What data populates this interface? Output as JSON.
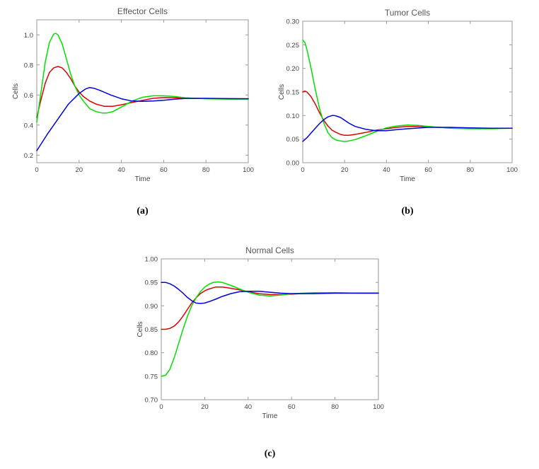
{
  "chart_data": [
    {
      "type": "line",
      "panel_label": "(a)",
      "title": "Effector  Cells",
      "xlabel": "Time",
      "ylabel": "Cells",
      "xlim": [
        0,
        100
      ],
      "ylim": [
        0.15,
        1.1
      ],
      "xticks": [
        0,
        20,
        40,
        60,
        80,
        100
      ],
      "xtick_labels": [
        "0",
        "20",
        "40",
        "60",
        "80",
        "100"
      ],
      "yticks": [
        0.2,
        0.4,
        0.6,
        0.8,
        1.0
      ],
      "ytick_labels": [
        "0.2",
        "0.4",
        "0.6",
        "0.8",
        "1.0"
      ],
      "series": [
        {
          "name": "red",
          "color": "#e00000",
          "x": [
            0,
            2,
            4,
            6,
            8,
            10,
            12,
            14,
            16,
            18,
            20,
            22,
            25,
            28,
            32,
            36,
            40,
            45,
            50,
            55,
            60,
            65,
            70,
            75,
            80,
            90,
            100
          ],
          "y": [
            0.45,
            0.57,
            0.68,
            0.75,
            0.78,
            0.79,
            0.78,
            0.75,
            0.71,
            0.66,
            0.62,
            0.59,
            0.56,
            0.54,
            0.525,
            0.525,
            0.535,
            0.55,
            0.565,
            0.578,
            0.583,
            0.582,
            0.58,
            0.578,
            0.576,
            0.575,
            0.575
          ]
        },
        {
          "name": "green",
          "color": "#00e000",
          "x": [
            0,
            2,
            4,
            6,
            8,
            9,
            10,
            12,
            14,
            16,
            18,
            20,
            22,
            25,
            28,
            31,
            33,
            36,
            40,
            45,
            50,
            55,
            60,
            65,
            70,
            80,
            90,
            100
          ],
          "y": [
            0.42,
            0.62,
            0.82,
            0.95,
            1.005,
            1.01,
            1.0,
            0.94,
            0.84,
            0.74,
            0.66,
            0.6,
            0.56,
            0.51,
            0.49,
            0.48,
            0.48,
            0.49,
            0.52,
            0.56,
            0.585,
            0.595,
            0.595,
            0.59,
            0.582,
            0.575,
            0.573,
            0.573
          ]
        },
        {
          "name": "blue",
          "color": "#0000e0",
          "x": [
            0,
            5,
            10,
            15,
            20,
            23,
            25,
            27,
            30,
            35,
            40,
            45,
            50,
            55,
            60,
            65,
            70,
            80,
            90,
            100
          ],
          "y": [
            0.23,
            0.34,
            0.44,
            0.54,
            0.61,
            0.64,
            0.65,
            0.645,
            0.63,
            0.6,
            0.575,
            0.56,
            0.558,
            0.56,
            0.565,
            0.572,
            0.577,
            0.578,
            0.576,
            0.575
          ]
        }
      ]
    },
    {
      "type": "line",
      "panel_label": "(b)",
      "title": "Tumor  Cells",
      "xlabel": "Time",
      "ylabel": "Cells",
      "xlim": [
        0,
        100
      ],
      "ylim": [
        0.0,
        0.3
      ],
      "xticks": [
        0,
        20,
        40,
        60,
        80,
        100
      ],
      "xtick_labels": [
        "0",
        "20",
        "40",
        "60",
        "80",
        "100"
      ],
      "yticks": [
        0.0,
        0.05,
        0.1,
        0.15,
        0.2,
        0.25,
        0.3
      ],
      "ytick_labels": [
        "0.00",
        "0.05",
        "0.10",
        "0.15",
        "0.20",
        "0.25",
        "0.30"
      ],
      "series": [
        {
          "name": "red",
          "color": "#e00000",
          "x": [
            0,
            1,
            2,
            4,
            6,
            8,
            10,
            12,
            14,
            16,
            18,
            20,
            22,
            25,
            30,
            35,
            40,
            45,
            50,
            55,
            60,
            70,
            80,
            90,
            100
          ],
          "y": [
            0.15,
            0.152,
            0.15,
            0.14,
            0.124,
            0.106,
            0.09,
            0.078,
            0.069,
            0.064,
            0.06,
            0.058,
            0.058,
            0.06,
            0.064,
            0.069,
            0.072,
            0.075,
            0.077,
            0.077,
            0.076,
            0.074,
            0.073,
            0.073,
            0.073
          ]
        },
        {
          "name": "green",
          "color": "#00e000",
          "x": [
            0,
            1,
            2,
            4,
            6,
            8,
            10,
            12,
            14,
            16,
            18,
            20,
            22,
            25,
            30,
            35,
            40,
            45,
            50,
            55,
            60,
            70,
            80,
            90,
            100
          ],
          "y": [
            0.26,
            0.255,
            0.24,
            0.2,
            0.155,
            0.115,
            0.085,
            0.064,
            0.053,
            0.048,
            0.046,
            0.045,
            0.046,
            0.049,
            0.057,
            0.066,
            0.074,
            0.078,
            0.08,
            0.079,
            0.077,
            0.073,
            0.072,
            0.072,
            0.073
          ]
        },
        {
          "name": "blue",
          "color": "#0000e0",
          "x": [
            0,
            2,
            4,
            6,
            8,
            10,
            12,
            14,
            15,
            16,
            18,
            20,
            22,
            25,
            30,
            35,
            40,
            45,
            50,
            60,
            70,
            80,
            90,
            100
          ],
          "y": [
            0.045,
            0.053,
            0.063,
            0.073,
            0.083,
            0.091,
            0.097,
            0.1,
            0.1,
            0.099,
            0.096,
            0.09,
            0.084,
            0.077,
            0.071,
            0.068,
            0.068,
            0.07,
            0.072,
            0.075,
            0.075,
            0.074,
            0.073,
            0.073
          ]
        }
      ]
    },
    {
      "type": "line",
      "panel_label": "(c)",
      "title": "Normal  Cells",
      "xlabel": "Time",
      "ylabel": "Cells",
      "xlim": [
        0,
        100
      ],
      "ylim": [
        0.7,
        1.0
      ],
      "xticks": [
        0,
        20,
        40,
        60,
        80,
        100
      ],
      "xtick_labels": [
        "0",
        "20",
        "40",
        "60",
        "80",
        "100"
      ],
      "yticks": [
        0.7,
        0.75,
        0.8,
        0.85,
        0.9,
        0.95,
        1.0
      ],
      "ytick_labels": [
        "0.70",
        "0.75",
        "0.80",
        "0.85",
        "0.90",
        "0.95",
        "1.00"
      ],
      "series": [
        {
          "name": "red",
          "color": "#e00000",
          "x": [
            0,
            2,
            4,
            6,
            8,
            10,
            12,
            14,
            16,
            18,
            20,
            22,
            25,
            28,
            30,
            35,
            40,
            45,
            50,
            55,
            60,
            70,
            80,
            90,
            100
          ],
          "y": [
            0.85,
            0.85,
            0.852,
            0.857,
            0.866,
            0.878,
            0.892,
            0.906,
            0.917,
            0.926,
            0.932,
            0.936,
            0.94,
            0.94,
            0.939,
            0.935,
            0.93,
            0.926,
            0.924,
            0.924,
            0.925,
            0.927,
            0.927,
            0.927,
            0.927
          ]
        },
        {
          "name": "green",
          "color": "#00e000",
          "x": [
            0,
            2,
            4,
            6,
            8,
            10,
            12,
            14,
            16,
            18,
            20,
            22,
            24,
            26,
            28,
            30,
            33,
            36,
            40,
            45,
            50,
            55,
            60,
            70,
            80,
            90,
            100
          ],
          "y": [
            0.75,
            0.752,
            0.765,
            0.79,
            0.82,
            0.85,
            0.877,
            0.9,
            0.917,
            0.93,
            0.94,
            0.946,
            0.95,
            0.951,
            0.95,
            0.947,
            0.942,
            0.936,
            0.929,
            0.923,
            0.921,
            0.923,
            0.926,
            0.928,
            0.928,
            0.927,
            0.927
          ]
        },
        {
          "name": "blue",
          "color": "#0000e0",
          "x": [
            0,
            2,
            4,
            6,
            8,
            10,
            12,
            14,
            16,
            18,
            20,
            22,
            25,
            28,
            32,
            36,
            40,
            45,
            50,
            55,
            60,
            70,
            80,
            90,
            100
          ],
          "y": [
            0.95,
            0.95,
            0.947,
            0.942,
            0.935,
            0.927,
            0.918,
            0.911,
            0.906,
            0.905,
            0.906,
            0.909,
            0.914,
            0.92,
            0.926,
            0.93,
            0.931,
            0.931,
            0.929,
            0.927,
            0.926,
            0.926,
            0.927,
            0.927,
            0.927
          ]
        }
      ]
    }
  ]
}
